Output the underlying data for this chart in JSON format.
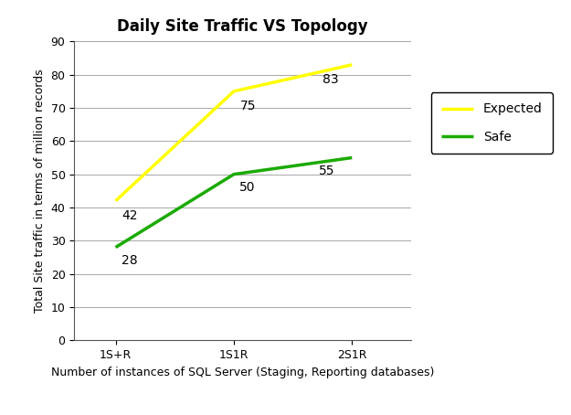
{
  "title": "Daily Site Traffic VS Topology",
  "xlabel": "Number of instances of SQL Server (Staging, Reporting databases)",
  "ylabel": "Total Site traffic in terms of million records",
  "categories": [
    "1S+R",
    "1S1R",
    "2S1R"
  ],
  "expected": [
    42,
    75,
    83
  ],
  "safe": [
    28,
    50,
    55
  ],
  "expected_color": "#FFFF00",
  "safe_color": "#1AAA00",
  "expected_label": "Expected",
  "safe_label": "Safe",
  "ylim": [
    0,
    90
  ],
  "yticks": [
    0,
    10,
    20,
    30,
    40,
    50,
    60,
    70,
    80,
    90
  ],
  "background_color": "#ffffff",
  "grid_color": "#999999",
  "line_width": 2.5,
  "annotation_fontsize": 10,
  "title_fontsize": 12,
  "axis_label_fontsize": 9,
  "tick_fontsize": 9,
  "legend_fontsize": 10
}
